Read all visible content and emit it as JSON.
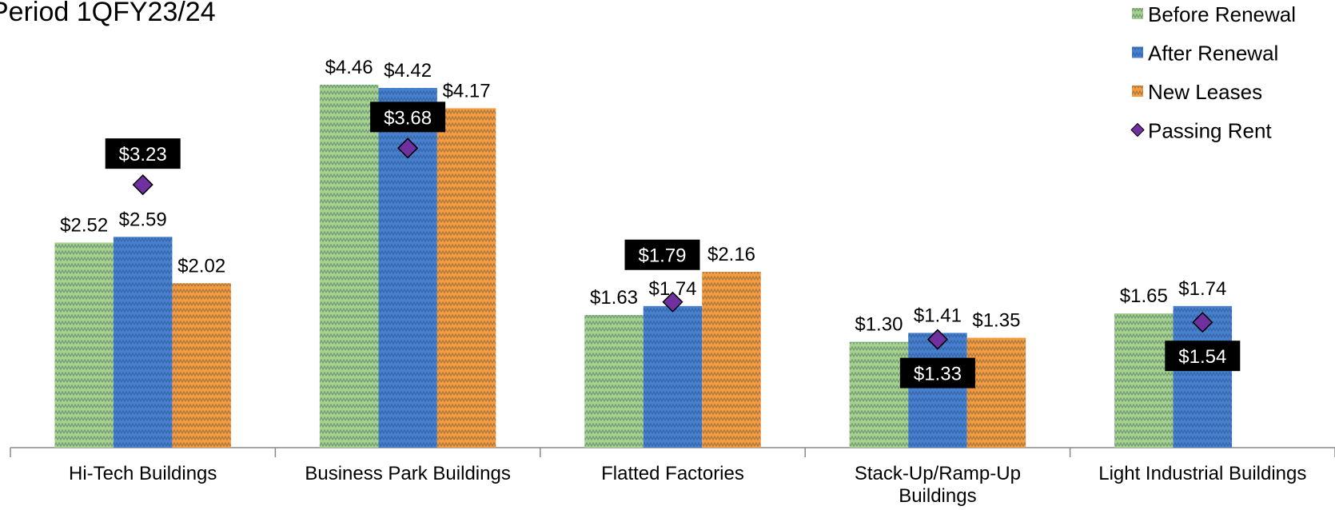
{
  "chart_data": {
    "type": "bar",
    "title": "Period 1QFY23/24",
    "categories": [
      "Hi-Tech Buildings",
      "Business Park Buildings",
      "Flatted Factories",
      "Stack-Up/Ramp-Up Buildings",
      "Light Industrial Buildings"
    ],
    "series": [
      {
        "name": "Before Renewal",
        "type": "bar",
        "color": "#a8d08d",
        "values": [
          2.52,
          4.46,
          1.63,
          1.3,
          1.65
        ],
        "value_labels": [
          "$2.52",
          "$4.46",
          "$1.63",
          "$1.30",
          "$1.65"
        ]
      },
      {
        "name": "After Renewal",
        "type": "bar",
        "color": "#4a7fd0",
        "values": [
          2.59,
          4.42,
          1.74,
          1.41,
          1.74
        ],
        "value_labels": [
          "$2.59",
          "$4.42",
          "$1.74",
          "$1.41",
          "$1.74"
        ]
      },
      {
        "name": "New Leases",
        "type": "bar",
        "color": "#f79a3e",
        "values": [
          2.02,
          4.17,
          2.16,
          1.35,
          null
        ],
        "value_labels": [
          "$2.02",
          "$4.17",
          "$2.16",
          "$1.35",
          null
        ]
      },
      {
        "name": "Passing Rent",
        "type": "marker",
        "color": "#7030a0",
        "values": [
          3.23,
          3.68,
          1.79,
          1.33,
          1.54
        ],
        "value_labels": [
          "$3.23",
          "$3.68",
          "$1.79",
          "$1.33",
          "$1.54"
        ]
      }
    ],
    "ylim": [
      0,
      5.5
    ],
    "legend": "top-right"
  }
}
